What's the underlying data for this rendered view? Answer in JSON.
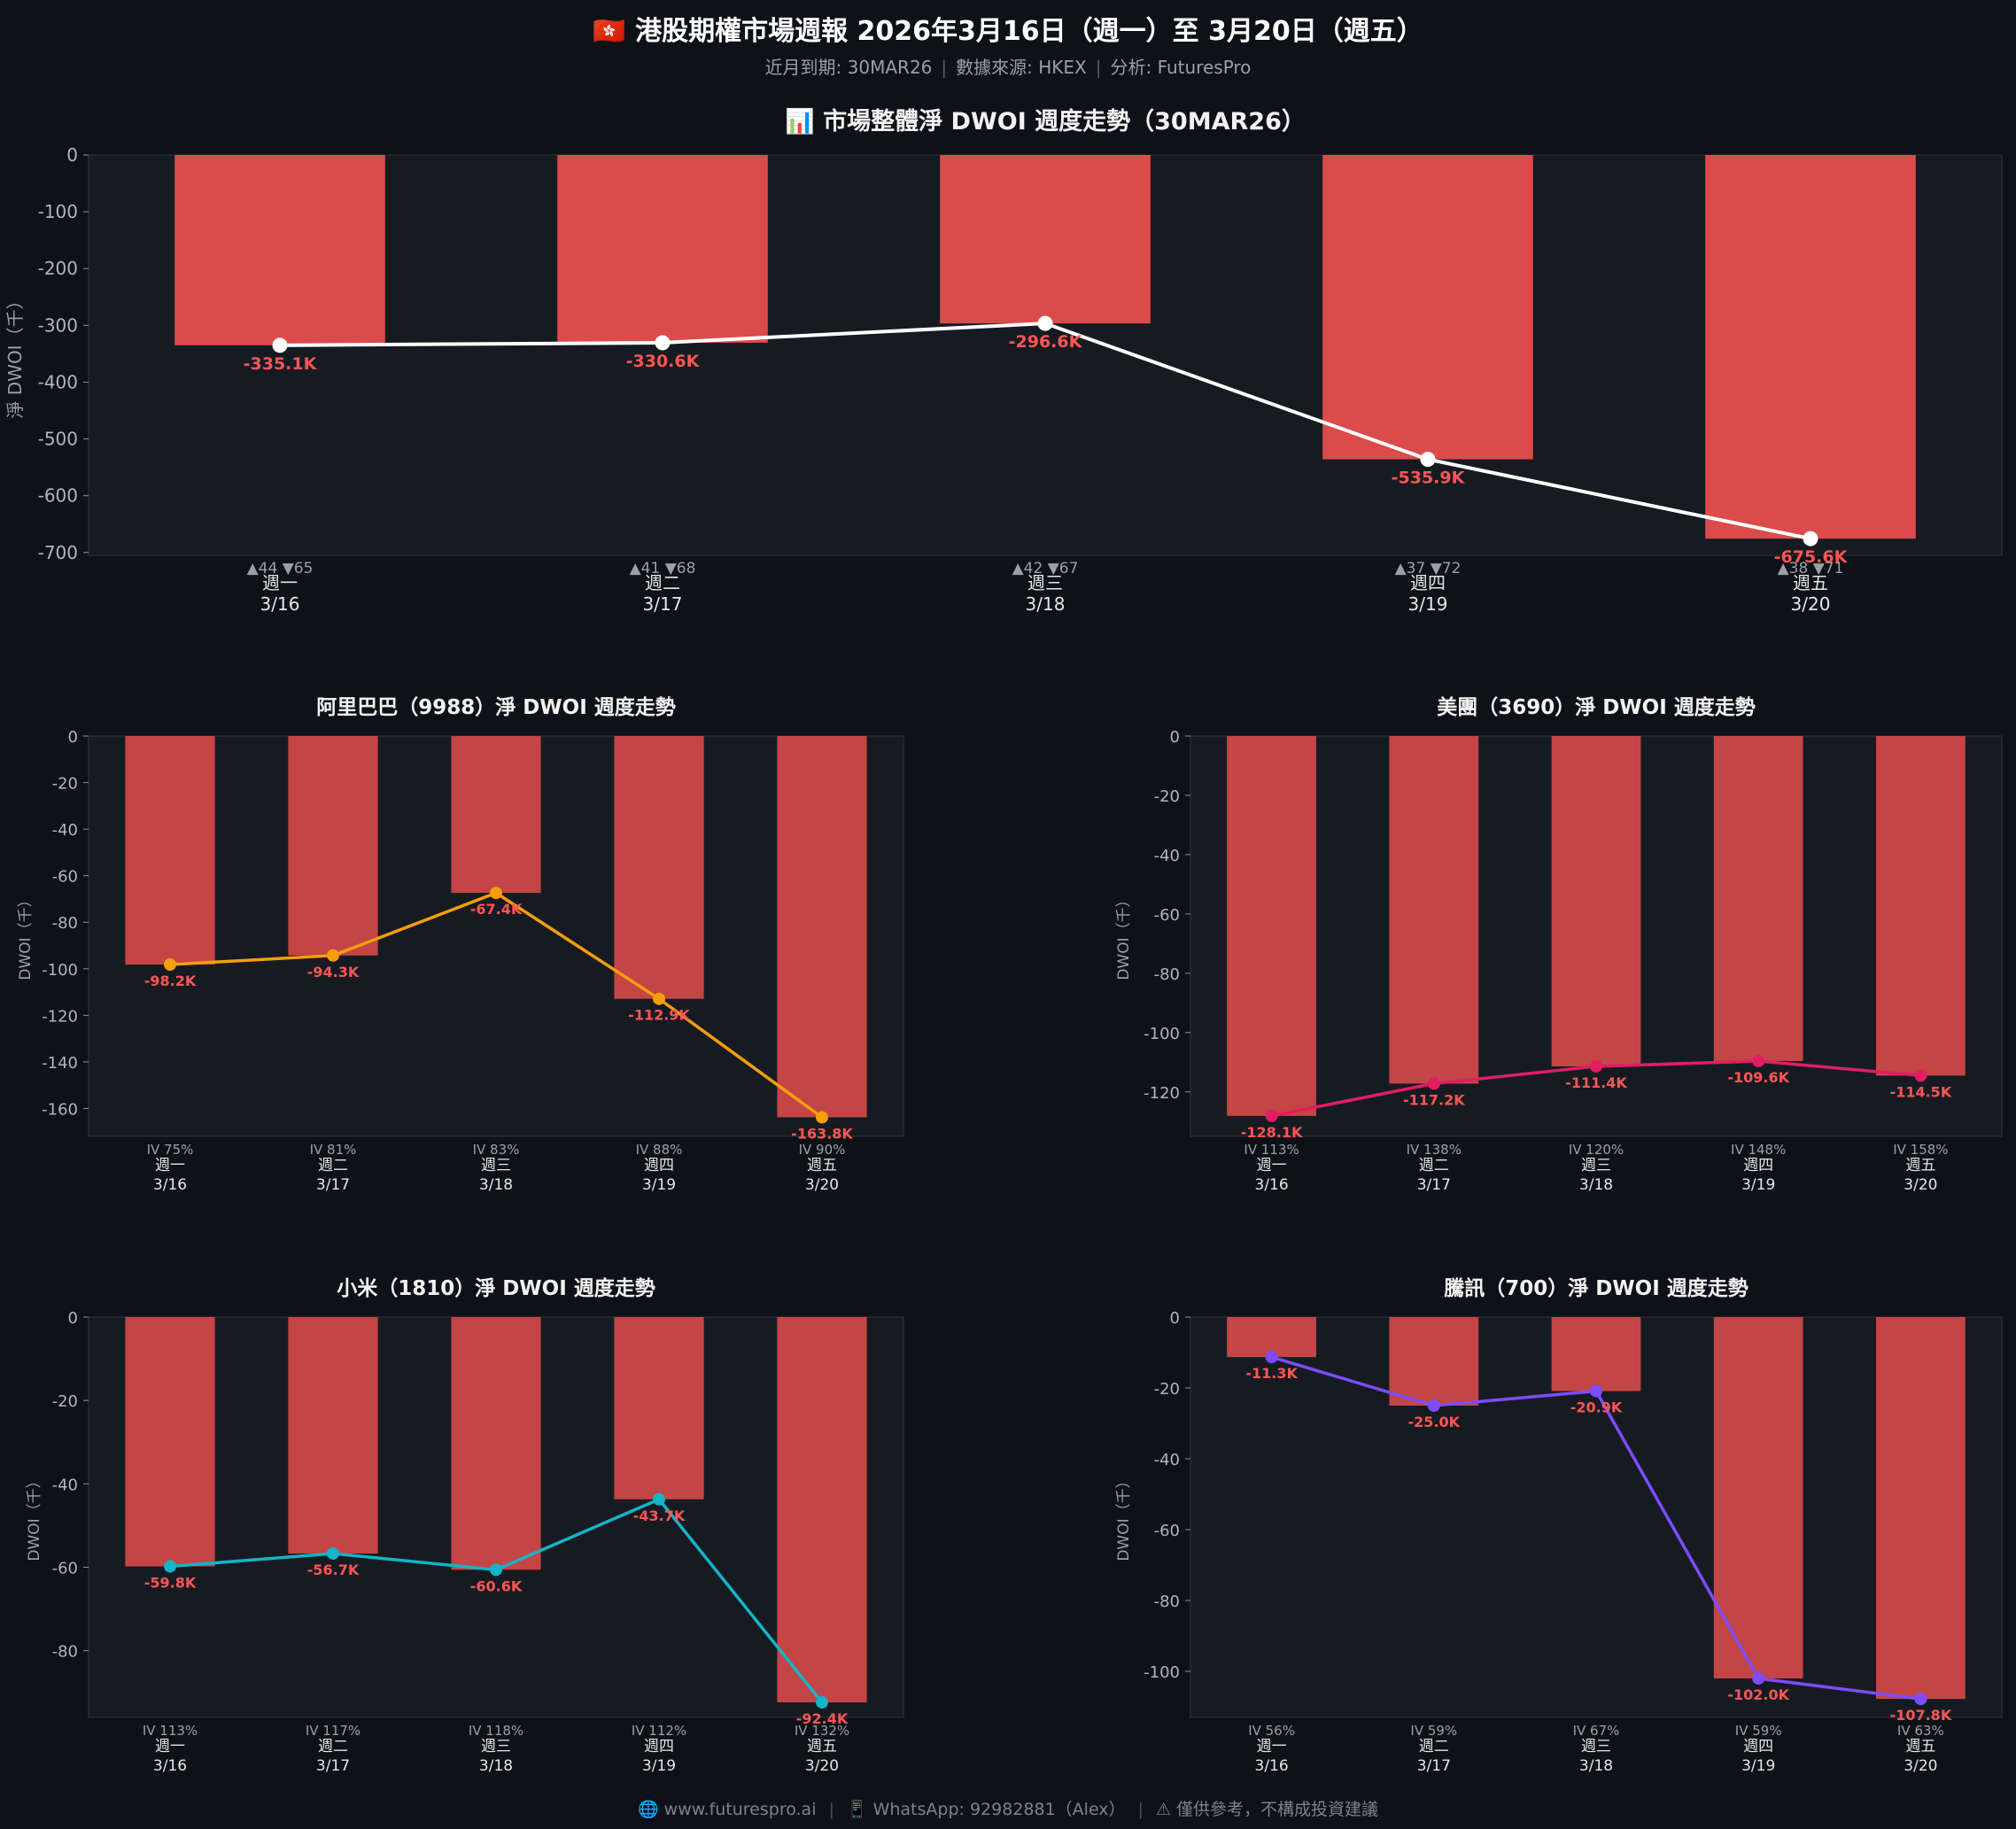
{
  "header": {
    "title": "🇭🇰 港股期權市場週報  2026年3月16日（週一）至 3月20日（週五）",
    "meta_expiry": "近月到期: 30MAR26",
    "meta_source": "數據來源: HKEX",
    "meta_analysis": "分析: FuturesPro"
  },
  "colors": {
    "background": "#0e1117",
    "panel": "#161b22",
    "bar": "#db4b4b",
    "bar_stock": "#c44545",
    "value_label": "#ff5555",
    "market_line": "#ffffff",
    "alibaba_line": "#f59e0b",
    "meituan_line": "#e11d63",
    "xiaomi_line": "#16b3c9",
    "tencent_line": "#7c4dff"
  },
  "chart_data": [
    {
      "id": "market",
      "type": "bar",
      "title": "📊 市場整體淨 DWOI 週度走勢（30MAR26）",
      "ylabel": "淨 DWOI（千）",
      "xlabel": "",
      "ylim": [
        -705,
        0
      ],
      "yticks": [
        0,
        -100,
        -200,
        -300,
        -400,
        -500,
        -600,
        -700
      ],
      "categories": [
        "週一",
        "週二",
        "週三",
        "週四",
        "週五"
      ],
      "dates": [
        "3/16",
        "3/17",
        "3/18",
        "3/19",
        "3/20"
      ],
      "values": [
        -335.1,
        -330.6,
        -296.6,
        -535.9,
        -675.6
      ],
      "value_labels": [
        "-335.1K",
        "-330.6K",
        "-296.6K",
        "-535.9K",
        "-675.6K"
      ],
      "counts": [
        "▲44 ▼65",
        "▲41 ▼68",
        "▲42 ▼67",
        "▲37 ▼72",
        "▲38 ▼71"
      ],
      "line_color": "#ffffff"
    },
    {
      "id": "alibaba",
      "type": "bar",
      "title": "阿里巴巴（9988）淨 DWOI 週度走勢",
      "ylabel": "DWOI（千）",
      "xlabel": "",
      "ylim": [
        -172,
        0
      ],
      "yticks": [
        0,
        -20,
        -40,
        -60,
        -80,
        -100,
        -120,
        -140,
        -160
      ],
      "categories": [
        "週一",
        "週二",
        "週三",
        "週四",
        "週五"
      ],
      "dates": [
        "3/16",
        "3/17",
        "3/18",
        "3/19",
        "3/20"
      ],
      "values": [
        -98.2,
        -94.3,
        -67.4,
        -112.9,
        -163.8
      ],
      "value_labels": [
        "-98.2K",
        "-94.3K",
        "-67.4K",
        "-112.9K",
        "-163.8K"
      ],
      "iv": [
        "IV 75%",
        "IV 81%",
        "IV 83%",
        "IV 88%",
        "IV 90%"
      ],
      "line_color": "#f59e0b"
    },
    {
      "id": "meituan",
      "type": "bar",
      "title": "美團（3690）淨 DWOI 週度走勢",
      "ylabel": "DWOI（千）",
      "xlabel": "",
      "ylim": [
        -135,
        0
      ],
      "yticks": [
        0,
        -20,
        -40,
        -60,
        -80,
        -100,
        -120
      ],
      "categories": [
        "週一",
        "週二",
        "週三",
        "週四",
        "週五"
      ],
      "dates": [
        "3/16",
        "3/17",
        "3/18",
        "3/19",
        "3/20"
      ],
      "values": [
        -128.1,
        -117.2,
        -111.4,
        -109.6,
        -114.5
      ],
      "value_labels": [
        "-128.1K",
        "-117.2K",
        "-111.4K",
        "-109.6K",
        "-114.5K"
      ],
      "iv": [
        "IV 113%",
        "IV 138%",
        "IV 120%",
        "IV 148%",
        "IV 158%"
      ],
      "line_color": "#e11d63"
    },
    {
      "id": "xiaomi",
      "type": "bar",
      "title": "小米（1810）淨 DWOI 週度走勢",
      "ylabel": "DWOI（千）",
      "xlabel": "",
      "ylim": [
        -96,
        0
      ],
      "yticks": [
        0,
        -20,
        -40,
        -60,
        -80
      ],
      "categories": [
        "週一",
        "週二",
        "週三",
        "週四",
        "週五"
      ],
      "dates": [
        "3/16",
        "3/17",
        "3/18",
        "3/19",
        "3/20"
      ],
      "values": [
        -59.8,
        -56.7,
        -60.6,
        -43.7,
        -92.4
      ],
      "value_labels": [
        "-59.8K",
        "-56.7K",
        "-60.6K",
        "-43.7K",
        "-92.4K"
      ],
      "iv": [
        "IV 113%",
        "IV 117%",
        "IV 118%",
        "IV 112%",
        "IV 132%"
      ],
      "line_color": "#16b3c9"
    },
    {
      "id": "tencent",
      "type": "bar",
      "title": "騰訊（700）淨 DWOI 週度走勢",
      "ylabel": "DWOI（千）",
      "xlabel": "",
      "ylim": [
        -113,
        0
      ],
      "yticks": [
        0,
        -20,
        -40,
        -60,
        -80,
        -100
      ],
      "categories": [
        "週一",
        "週二",
        "週三",
        "週四",
        "週五"
      ],
      "dates": [
        "3/16",
        "3/17",
        "3/18",
        "3/19",
        "3/20"
      ],
      "values": [
        -11.3,
        -25.0,
        -20.9,
        -102.0,
        -107.8
      ],
      "value_labels": [
        "-11.3K",
        "-25.0K",
        "-20.9K",
        "-102.0K",
        "-107.8K"
      ],
      "iv": [
        "IV 56%",
        "IV 59%",
        "IV 67%",
        "IV 59%",
        "IV 63%"
      ],
      "line_color": "#7c4dff"
    }
  ],
  "footer": {
    "website": "🌐 www.futurespro.ai",
    "whatsapp": "📱 WhatsApp: 92982881（Alex）",
    "disclaimer": "⚠ 僅供參考，不構成投資建議"
  }
}
